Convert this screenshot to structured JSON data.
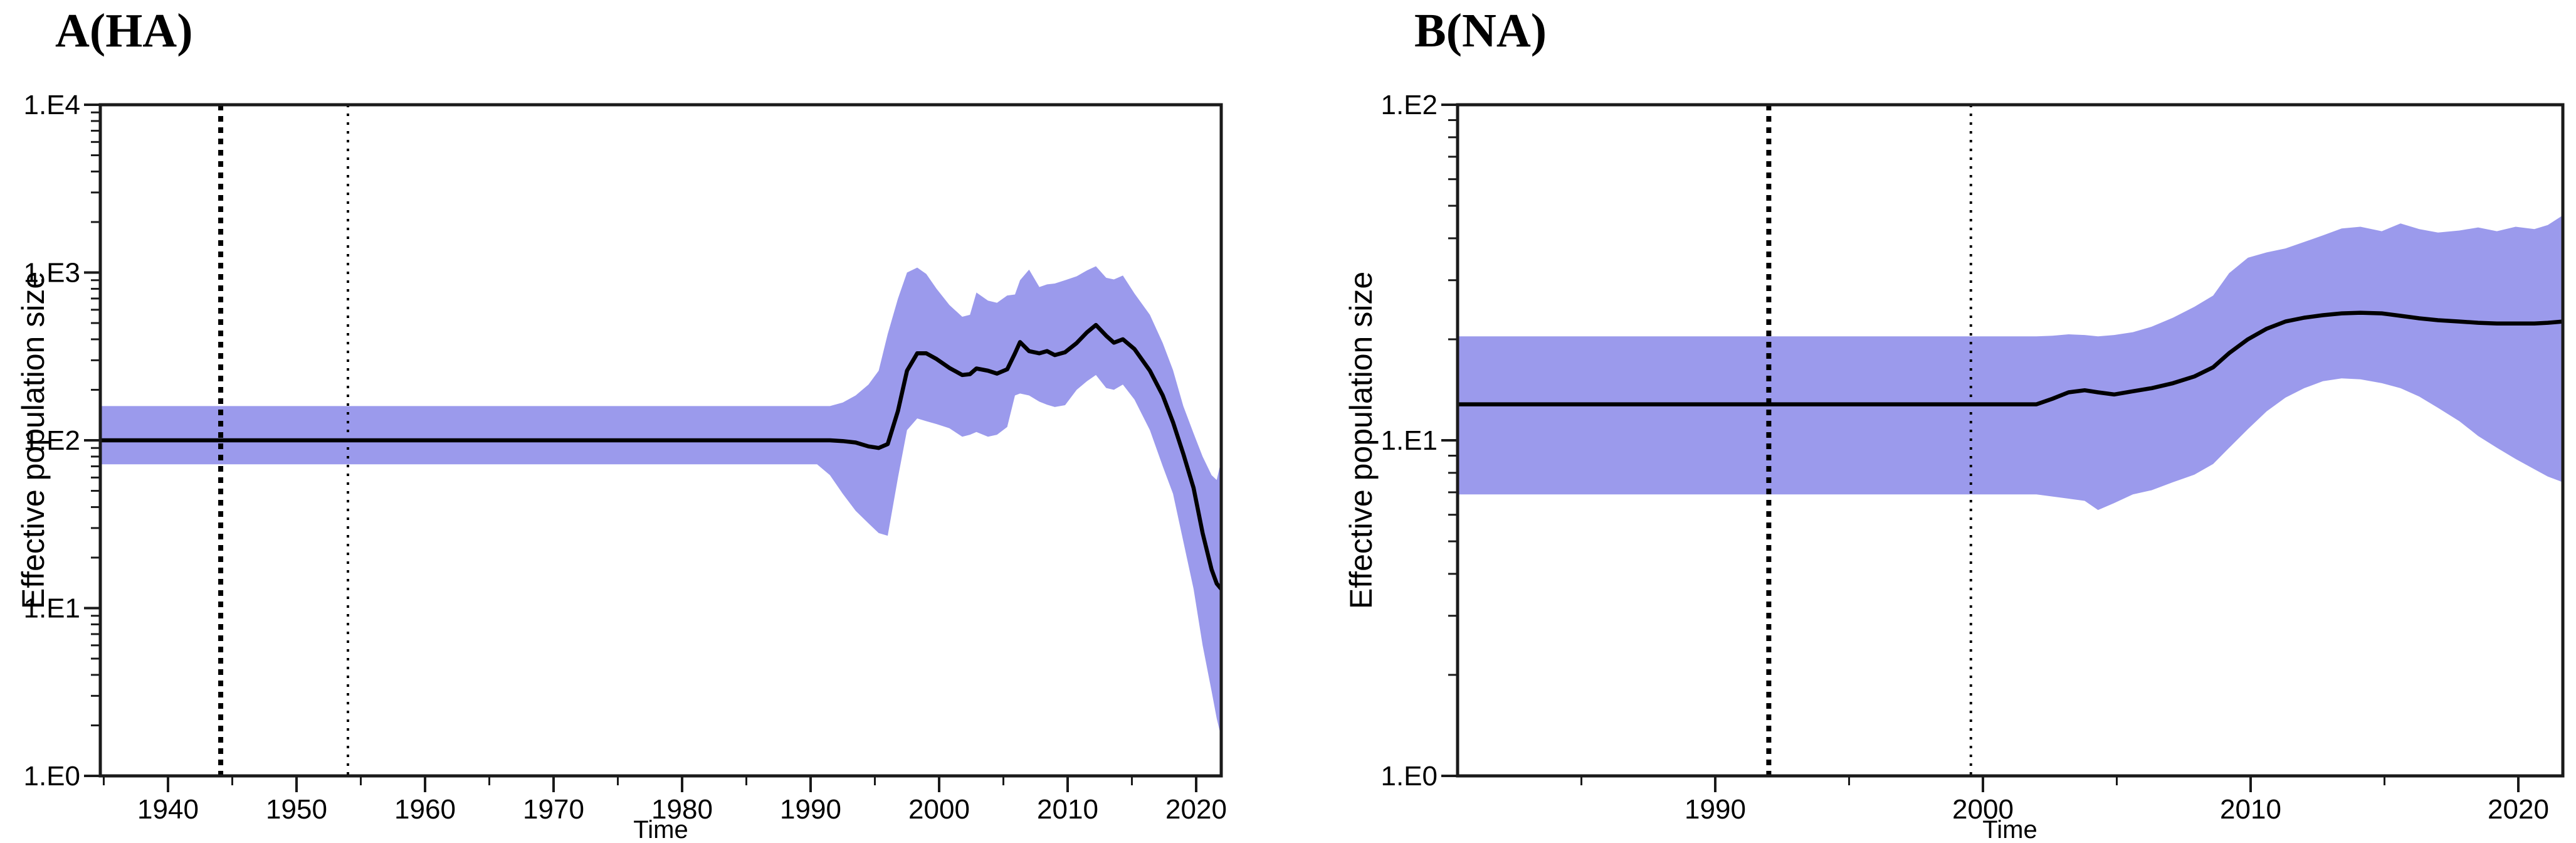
{
  "figure": {
    "background": "#ffffff",
    "band_color": "#9b9aec",
    "median_color": "#000000",
    "frame_color": "#1a1a1a",
    "ref_line_color": "#000000"
  },
  "chart_data": [
    {
      "type": "line",
      "subtype": "bayesian-skyline-with-credible-interval-band",
      "title": "A(HA)",
      "xlabel": "Time",
      "ylabel": "Effective population size",
      "x_range": [
        1934.7,
        2021.95
      ],
      "y_log10_range": [
        0,
        4
      ],
      "y_tick_labels": [
        "1.E0",
        "1.E1",
        "1.E2",
        "1.E3",
        "1.E4"
      ],
      "x_major_ticks": [
        1940,
        1950,
        1960,
        1970,
        1980,
        1990,
        2000,
        2010,
        2020
      ],
      "x_minor_ticks": [
        1935,
        1945,
        1955,
        1965,
        1975,
        1985,
        1995,
        2005,
        2015
      ],
      "grid": "off",
      "legend": "none",
      "ref_lines": [
        {
          "year": 1944.1,
          "style": "thick-dotted"
        },
        {
          "year": 1954.0,
          "style": "fine-dotted"
        }
      ],
      "x": [
        1934.7,
        1990.5,
        1991.5,
        1992.5,
        1993.5,
        1994.5,
        1995.3,
        1996.0,
        1996.8,
        1997.5,
        1998.3,
        1999.0,
        1999.8,
        2000.8,
        2001.8,
        2002.4,
        2002.9,
        2003.8,
        2004.5,
        2005.3,
        2005.9,
        2006.3,
        2007.0,
        2007.8,
        2008.4,
        2009.0,
        2009.8,
        2010.7,
        2011.5,
        2012.2,
        2013.0,
        2013.6,
        2014.3,
        2015.2,
        2016.4,
        2017.4,
        2018.2,
        2019.0,
        2019.8,
        2020.5,
        2021.2,
        2021.6,
        2021.95
      ],
      "median": [
        100,
        100,
        100,
        99,
        97,
        92,
        90,
        95,
        150,
        260,
        330,
        330,
        305,
        270,
        245,
        248,
        268,
        260,
        250,
        265,
        330,
        385,
        340,
        330,
        340,
        322,
        335,
        380,
        440,
        487,
        420,
        382,
        400,
        350,
        260,
        185,
        128,
        83,
        52,
        28,
        17,
        14,
        13
      ],
      "lower_95_hpd": [
        72,
        72,
        62,
        48,
        38,
        32,
        28,
        27,
        60,
        115,
        135,
        130,
        125,
        118,
        105,
        108,
        112,
        105,
        108,
        120,
        185,
        190,
        185,
        170,
        163,
        158,
        162,
        200,
        225,
        245,
        205,
        200,
        215,
        175,
        115,
        70,
        48,
        25,
        13,
        6,
        3.2,
        2.2,
        1.7
      ],
      "upper_95_hpd": [
        160,
        160,
        160,
        168,
        185,
        215,
        260,
        430,
        700,
        1000,
        1070,
        980,
        800,
        640,
        545,
        560,
        760,
        680,
        660,
        730,
        740,
        900,
        1040,
        820,
        850,
        860,
        900,
        950,
        1030,
        1090,
        930,
        910,
        960,
        750,
        560,
        380,
        262,
        160,
        110,
        80,
        62,
        58,
        76
      ]
    },
    {
      "type": "line",
      "subtype": "bayesian-skyline-with-credible-interval-band",
      "title": "B(NA)",
      "xlabel": "Time",
      "ylabel": "Effective population size",
      "x_range": [
        1980.4,
        2021.66
      ],
      "y_log10_range": [
        0,
        2
      ],
      "y_tick_labels": [
        "1.E0",
        "1.E1",
        "1.E2"
      ],
      "x_major_ticks": [
        1990,
        2000,
        2010,
        2020
      ],
      "x_minor_ticks": [
        1985,
        1995,
        2005,
        2015
      ],
      "grid": "off",
      "legend": "none",
      "ref_lines": [
        {
          "year": 1992.0,
          "style": "thick-dotted"
        },
        {
          "year": 1999.55,
          "style": "fine-dotted"
        }
      ],
      "x": [
        1980.4,
        2002.0,
        2002.6,
        2003.2,
        2003.8,
        2004.3,
        2004.9,
        2005.6,
        2006.3,
        2007.1,
        2007.9,
        2008.6,
        2009.2,
        2009.9,
        2010.6,
        2011.3,
        2012.0,
        2012.7,
        2013.4,
        2014.1,
        2014.9,
        2015.6,
        2016.3,
        2017.0,
        2017.8,
        2018.5,
        2019.2,
        2019.9,
        2020.6,
        2021.1,
        2021.66
      ],
      "median": [
        12.8,
        12.8,
        13.3,
        13.9,
        14.1,
        13.9,
        13.7,
        14.0,
        14.3,
        14.8,
        15.5,
        16.5,
        18.2,
        20.0,
        21.5,
        22.6,
        23.2,
        23.6,
        23.9,
        24.0,
        23.9,
        23.5,
        23.1,
        22.8,
        22.6,
        22.4,
        22.3,
        22.3,
        22.3,
        22.4,
        22.6
      ],
      "lower_95_hpd": [
        6.9,
        6.9,
        6.8,
        6.7,
        6.6,
        6.2,
        6.5,
        6.9,
        7.1,
        7.5,
        7.9,
        8.5,
        9.5,
        10.8,
        12.2,
        13.4,
        14.3,
        15.0,
        15.3,
        15.2,
        14.8,
        14.3,
        13.5,
        12.5,
        11.4,
        10.3,
        9.5,
        8.8,
        8.2,
        7.8,
        7.5
      ],
      "upper_95_hpd": [
        20.4,
        20.4,
        20.5,
        20.7,
        20.6,
        20.4,
        20.6,
        21.0,
        21.8,
        23.2,
        25.0,
        27.0,
        31.5,
        35.0,
        36.3,
        37.3,
        39.0,
        40.8,
        42.8,
        43.3,
        42.0,
        44.3,
        42.6,
        41.6,
        42.2,
        43.1,
        42.0,
        43.3,
        42.6,
        43.8,
        46.8
      ]
    }
  ]
}
